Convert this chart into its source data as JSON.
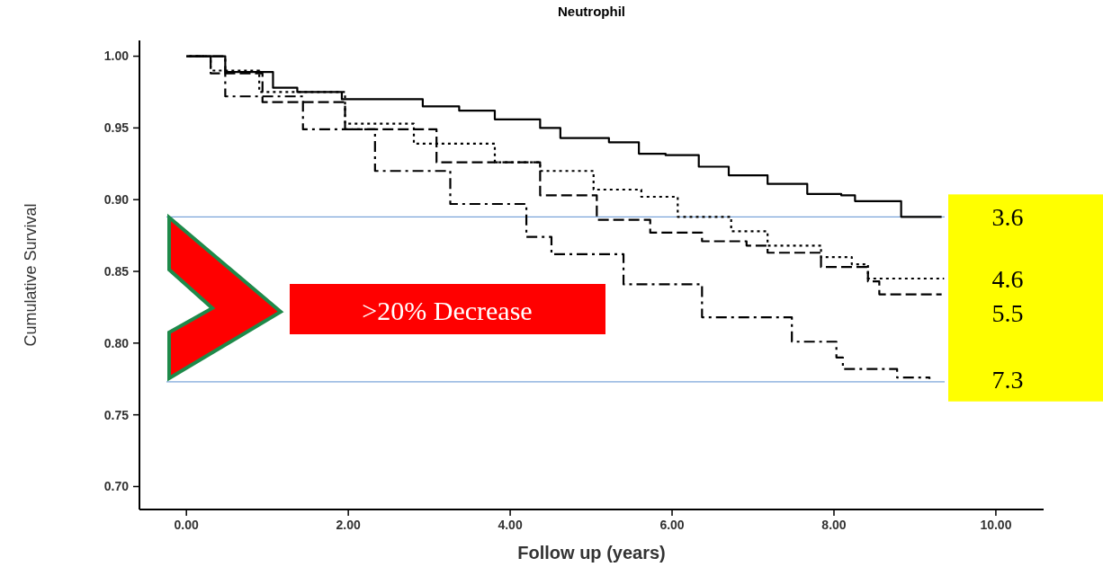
{
  "chart_data": {
    "type": "step",
    "title": "Neutrophil",
    "xlabel": "Follow up (years)",
    "ylabel": "Cumulative Survival",
    "xlim": [
      -0.58,
      10.59
    ],
    "ylim": [
      0.684,
      1.011
    ],
    "xticks": [
      {
        "value": 0,
        "label": "0.00"
      },
      {
        "value": 2,
        "label": "2.00"
      },
      {
        "value": 4,
        "label": "4.00"
      },
      {
        "value": 6,
        "label": "6.00"
      },
      {
        "value": 8,
        "label": "8.00"
      },
      {
        "value": 10,
        "label": "10.00"
      }
    ],
    "yticks": [
      {
        "value": 0.7,
        "label": "0.70"
      },
      {
        "value": 0.75,
        "label": "0.75"
      },
      {
        "value": 0.8,
        "label": "0.80"
      },
      {
        "value": 0.85,
        "label": "0.85"
      },
      {
        "value": 0.9,
        "label": "0.90"
      },
      {
        "value": 0.95,
        "label": "0.95"
      },
      {
        "value": 1,
        "label": "1.00"
      }
    ],
    "grid": false,
    "series": [
      {
        "name": "3.6",
        "color": "#000000",
        "line_style": "solid",
        "x": [
          0,
          0.48,
          1.07,
          1.37,
          1.92,
          2.62,
          2.92,
          3.37,
          3.81,
          4.37,
          4.62,
          5.22,
          5.59,
          5.92,
          6.33,
          6.7,
          7.18,
          7.67,
          8.09,
          8.26,
          8.83,
          9.33
        ],
        "values": [
          1.0,
          0.989,
          0.978,
          0.975,
          0.97,
          0.97,
          0.965,
          0.962,
          0.956,
          0.95,
          0.943,
          0.94,
          0.932,
          0.931,
          0.923,
          0.917,
          0.911,
          0.904,
          0.903,
          0.899,
          0.888,
          0.888
        ]
      },
      {
        "name": "4.6",
        "color": "#000000",
        "line_style": "dotted",
        "x": [
          0,
          0.3,
          0.9,
          1.96,
          2.81,
          3.81,
          4.37,
          5.03,
          5.62,
          6.07,
          6.73,
          7.18,
          7.84,
          8.22,
          8.42,
          9.36
        ],
        "values": [
          1.0,
          0.99,
          0.975,
          0.953,
          0.939,
          0.926,
          0.92,
          0.907,
          0.902,
          0.888,
          0.878,
          0.868,
          0.86,
          0.855,
          0.845,
          0.845
        ]
      },
      {
        "name": "5.5",
        "color": "#000000",
        "line_style": "dashed",
        "x": [
          0,
          0.3,
          0.94,
          1.96,
          3.09,
          4.37,
          5.07,
          5.73,
          6.37,
          6.92,
          7.18,
          7.84,
          8.42,
          8.56,
          9.33
        ],
        "values": [
          1.0,
          0.988,
          0.968,
          0.949,
          0.926,
          0.903,
          0.886,
          0.877,
          0.871,
          0.868,
          0.863,
          0.853,
          0.843,
          0.834,
          0.834
        ]
      },
      {
        "name": "7.3",
        "color": "#000000",
        "line_style": "dashed",
        "x": [
          0,
          0.48,
          1.44,
          2.33,
          3.26,
          4.2,
          4.51,
          5.4,
          6.37,
          7.48,
          8.03,
          8.11,
          8.78,
          9.18
        ],
        "values": [
          1.0,
          0.972,
          0.949,
          0.92,
          0.897,
          0.874,
          0.862,
          0.841,
          0.818,
          0.801,
          0.79,
          0.782,
          0.776,
          0.775
        ]
      }
    ],
    "ref_lines": [
      {
        "axis": "y",
        "value": 0.888,
        "color": "#5b8fd0"
      },
      {
        "axis": "y",
        "value": 0.773,
        "color": "#5b8fd0"
      }
    ],
    "annotations": [
      ">20% Decrease"
    ]
  }
}
